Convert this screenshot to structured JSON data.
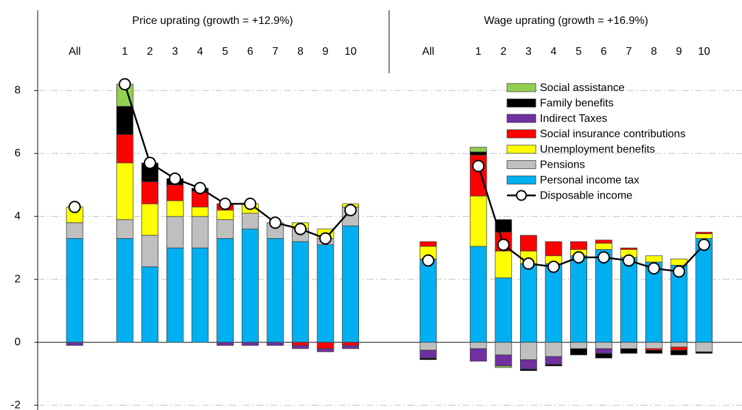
{
  "chart_data": {
    "type": "bar",
    "stacked": true,
    "ylim": [
      -2.15,
      10.55
    ],
    "yticks": [
      -2,
      0,
      2,
      4,
      6,
      8
    ],
    "grid": true,
    "legend": "upper right",
    "panels": [
      {
        "title": "Price uprating (growth = +12.9%)",
        "categories": [
          "All",
          null,
          "1",
          "2",
          "3",
          "4",
          "5",
          "6",
          "7",
          "8",
          "9",
          "10"
        ]
      },
      {
        "title": "Wage uprating (growth = +16.9%)",
        "categories": [
          "All",
          null,
          "1",
          "2",
          "3",
          "4",
          "5",
          "6",
          "7",
          "8",
          "9",
          "10"
        ]
      }
    ],
    "series": [
      {
        "name": "Personal income tax",
        "color": "#00b0f0",
        "type": "bar",
        "values": [
          [
            3.3,
            null,
            3.3,
            2.4,
            3.0,
            3.0,
            3.3,
            3.6,
            3.3,
            3.2,
            3.1,
            3.7
          ],
          [
            2.65,
            null,
            3.05,
            2.05,
            2.5,
            2.5,
            2.75,
            2.95,
            2.7,
            2.55,
            2.45,
            3.3
          ]
        ]
      },
      {
        "name": "Pensions",
        "color": "#bfbfbf",
        "type": "bar",
        "values": [
          [
            0.5,
            null,
            0.6,
            1.0,
            1.0,
            1.0,
            0.6,
            0.5,
            0.5,
            0.4,
            0.2,
            0.6
          ],
          [
            -0.25,
            null,
            -0.2,
            -0.4,
            -0.55,
            -0.45,
            -0.2,
            -0.2,
            -0.2,
            -0.2,
            -0.15,
            -0.3
          ]
        ]
      },
      {
        "name": "Unemployment benefits",
        "color": "#ffff00",
        "type": "bar",
        "values": [
          [
            0.5,
            null,
            1.8,
            1.0,
            0.5,
            0.3,
            0.3,
            0.3,
            0,
            0.2,
            0.3,
            0.1
          ],
          [
            0.4,
            null,
            1.6,
            0.85,
            0.4,
            0.25,
            0.2,
            0.2,
            0.25,
            0.2,
            0.2,
            0.15
          ]
        ]
      },
      {
        "name": "Social insurance contributions",
        "color": "#ff0000",
        "type": "bar",
        "values": [
          [
            0,
            null,
            0.9,
            0.7,
            0.5,
            0.5,
            0.2,
            0,
            0,
            -0.1,
            -0.2,
            -0.1
          ],
          [
            0.15,
            null,
            1.3,
            0.6,
            0.5,
            0.45,
            0.25,
            0.1,
            0.05,
            -0.05,
            -0.1,
            0.05
          ]
        ]
      },
      {
        "name": "Indirect Taxes",
        "color": "#7030a0",
        "type": "bar",
        "values": [
          [
            -0.1,
            null,
            0,
            0,
            0,
            0,
            -0.1,
            -0.1,
            -0.1,
            -0.1,
            -0.1,
            -0.1
          ],
          [
            -0.25,
            null,
            -0.4,
            -0.35,
            -0.3,
            -0.25,
            0,
            -0.15,
            0,
            0,
            0,
            0
          ]
        ]
      },
      {
        "name": "Family benefits",
        "color": "#000000",
        "type": "bar",
        "values": [
          [
            0,
            null,
            0.9,
            0.6,
            0.2,
            0.1,
            0,
            0,
            0,
            0,
            0,
            0
          ],
          [
            -0.05,
            null,
            0.1,
            0.4,
            -0.05,
            -0.05,
            -0.2,
            -0.15,
            -0.15,
            -0.1,
            -0.15,
            -0.05
          ]
        ]
      },
      {
        "name": "Social assistance",
        "color": "#92d050",
        "type": "bar",
        "values": [
          [
            0,
            null,
            0.7,
            0,
            0,
            0,
            0,
            0,
            0,
            0,
            0,
            0
          ],
          [
            0,
            null,
            0.15,
            -0.05,
            0,
            0,
            0,
            0,
            0,
            0,
            0,
            0
          ]
        ]
      },
      {
        "name": "Disposable income",
        "color": "#000000",
        "type": "line",
        "values": [
          [
            4.3,
            null,
            8.2,
            5.7,
            5.2,
            4.9,
            4.4,
            4.4,
            3.8,
            3.6,
            3.3,
            4.2
          ],
          [
            2.6,
            null,
            5.6,
            3.1,
            2.5,
            2.4,
            2.7,
            2.7,
            2.6,
            2.35,
            2.25,
            3.1
          ]
        ]
      }
    ]
  }
}
